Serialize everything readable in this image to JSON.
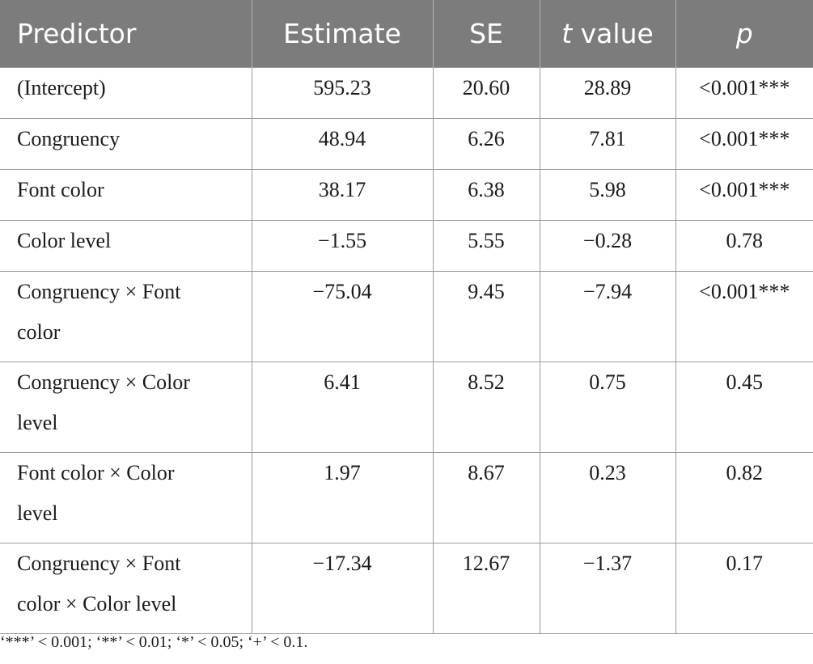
{
  "table": {
    "headers": [
      "Predictor",
      "Estimate",
      "SE",
      "value",
      "p"
    ],
    "header_t": "t",
    "rows": [
      {
        "predictor": "(Intercept)",
        "estimate": "595.23",
        "se": "20.60",
        "t": "28.89",
        "p": "<0.001***"
      },
      {
        "predictor": "Congruency",
        "estimate": "48.94",
        "se": "6.26",
        "t": "7.81",
        "p": "<0.001***"
      },
      {
        "predictor": "Font color",
        "estimate": "38.17",
        "se": "6.38",
        "t": "5.98",
        "p": "<0.001***"
      },
      {
        "predictor": "Color level",
        "estimate": "−1.55",
        "se": "5.55",
        "t": "−0.28",
        "p": "0.78"
      },
      {
        "predictor_l1": "Congruency × Font",
        "predictor_l2": "color",
        "estimate": "−75.04",
        "se": "9.45",
        "t": "−7.94",
        "p": "<0.001***"
      },
      {
        "predictor_l1": "Congruency × Color",
        "predictor_l2": "level",
        "estimate": "6.41",
        "se": "8.52",
        "t": "0.75",
        "p": "0.45"
      },
      {
        "predictor_l1": "Font color × Color",
        "predictor_l2": "level",
        "estimate": "1.97",
        "se": "8.67",
        "t": "0.23",
        "p": "0.82"
      },
      {
        "predictor_l1": "Congruency × Font",
        "predictor_l2": "color × Color level",
        "estimate": "−17.34",
        "se": "12.67",
        "t": "−1.37",
        "p": "0.17"
      }
    ]
  },
  "footnote": "‘***’ < 0.001; ‘**’ < 0.01; ‘*’ < 0.05; ‘+’ < 0.1."
}
